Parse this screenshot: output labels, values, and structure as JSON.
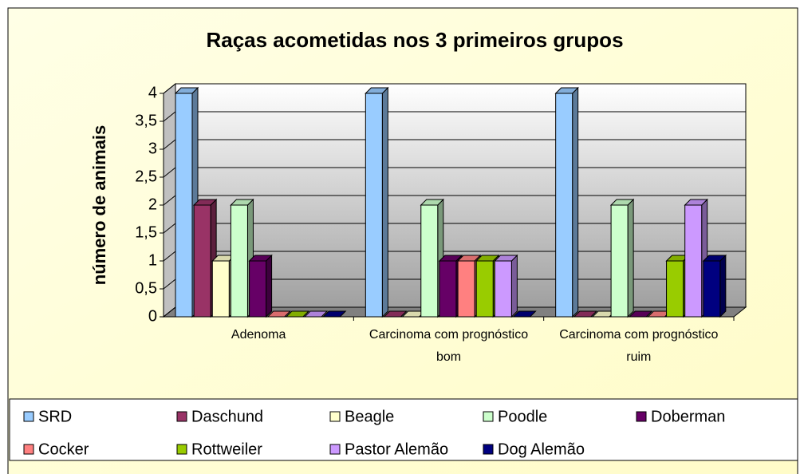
{
  "chart_data": {
    "type": "bar3d",
    "title": "Raças acometidas nos 3 primeiros grupos",
    "y_label": "número de animais",
    "categories": [
      "Adenoma",
      "Carcinoma com prognóstico bom",
      "Carcinoma com prognóstico ruim"
    ],
    "series": [
      {
        "name": "SRD",
        "color": "#99ccff",
        "values": [
          4,
          4,
          4
        ]
      },
      {
        "name": "Daschund",
        "color": "#993366",
        "values": [
          2,
          0,
          0
        ]
      },
      {
        "name": "Beagle",
        "color": "#ffffcc",
        "values": [
          1,
          0,
          0
        ]
      },
      {
        "name": "Poodle",
        "color": "#ccffcc",
        "values": [
          2,
          2,
          2
        ]
      },
      {
        "name": "Doberman",
        "color": "#660066",
        "values": [
          1,
          1,
          0
        ]
      },
      {
        "name": "Cocker",
        "color": "#ff8080",
        "values": [
          0,
          1,
          0
        ]
      },
      {
        "name": "Rottweiler",
        "color": "#99cc00",
        "values": [
          0,
          1,
          1
        ]
      },
      {
        "name": "Pastor Alemão",
        "color": "#cc99ff",
        "values": [
          0,
          1,
          2
        ]
      },
      {
        "name": "Dog Alemão",
        "color": "#000080",
        "values": [
          0,
          0,
          1
        ]
      }
    ],
    "ylim": [
      0,
      4
    ],
    "yticks": [
      0,
      {
        "value": 0.5,
        "label": "0,5"
      },
      1,
      {
        "value": 1.5,
        "label": "1,5"
      },
      2,
      {
        "value": 2.5,
        "label": "2,5"
      },
      3,
      {
        "value": 3.5,
        "label": "3,5"
      },
      4
    ],
    "grid": true,
    "legend": "bottom"
  }
}
